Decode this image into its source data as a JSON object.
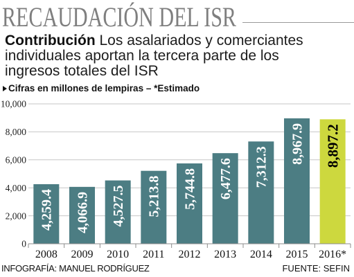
{
  "chart_data": {
    "type": "bar",
    "title": "RECAUDACIÓN DEL ISR",
    "subtitle_lead": "Contribución",
    "subtitle": "Los asalariados y comerciantes individuales aportan la tercera parte de los ingresos totales del ISR",
    "note": "Cifras en millones de lempiras – *Estimado",
    "categories": [
      "2008",
      "2009",
      "2010",
      "2011",
      "2012",
      "2013",
      "2014",
      "2015",
      "2016*"
    ],
    "values": [
      4259.4,
      4066.9,
      4527.5,
      5213.8,
      5744.8,
      6477.6,
      7312.3,
      8967.9,
      8897.2
    ],
    "data_labels": [
      "4,259.4",
      "4,066.9",
      "4,527.5",
      "5,213.8",
      "5,744.8",
      "6,477.6",
      "7,312.3",
      "8,967.9",
      "8,897.2"
    ],
    "estimated": [
      false,
      false,
      false,
      false,
      false,
      false,
      false,
      false,
      true
    ],
    "ylim": [
      0,
      10000
    ],
    "yticks": [
      0,
      2000,
      4000,
      6000,
      8000,
      10000
    ],
    "ytick_labels": [
      "0",
      "2,000",
      "4,000",
      "6,000",
      "8,000",
      "10,000"
    ],
    "grid": true,
    "colors": {
      "bar": "#4c7d83",
      "estimated_bar": "#cdd83e",
      "label": "#ffffff",
      "estimated_label": "#000000",
      "title": "#7f7f7f"
    }
  },
  "icons": {
    "note_bullet": "triangle-right-icon"
  },
  "footer": {
    "credit": "INFOGRAFÍA: MANUEL RODRÍGUEZ",
    "source": "FUENTE: SEFIN"
  }
}
